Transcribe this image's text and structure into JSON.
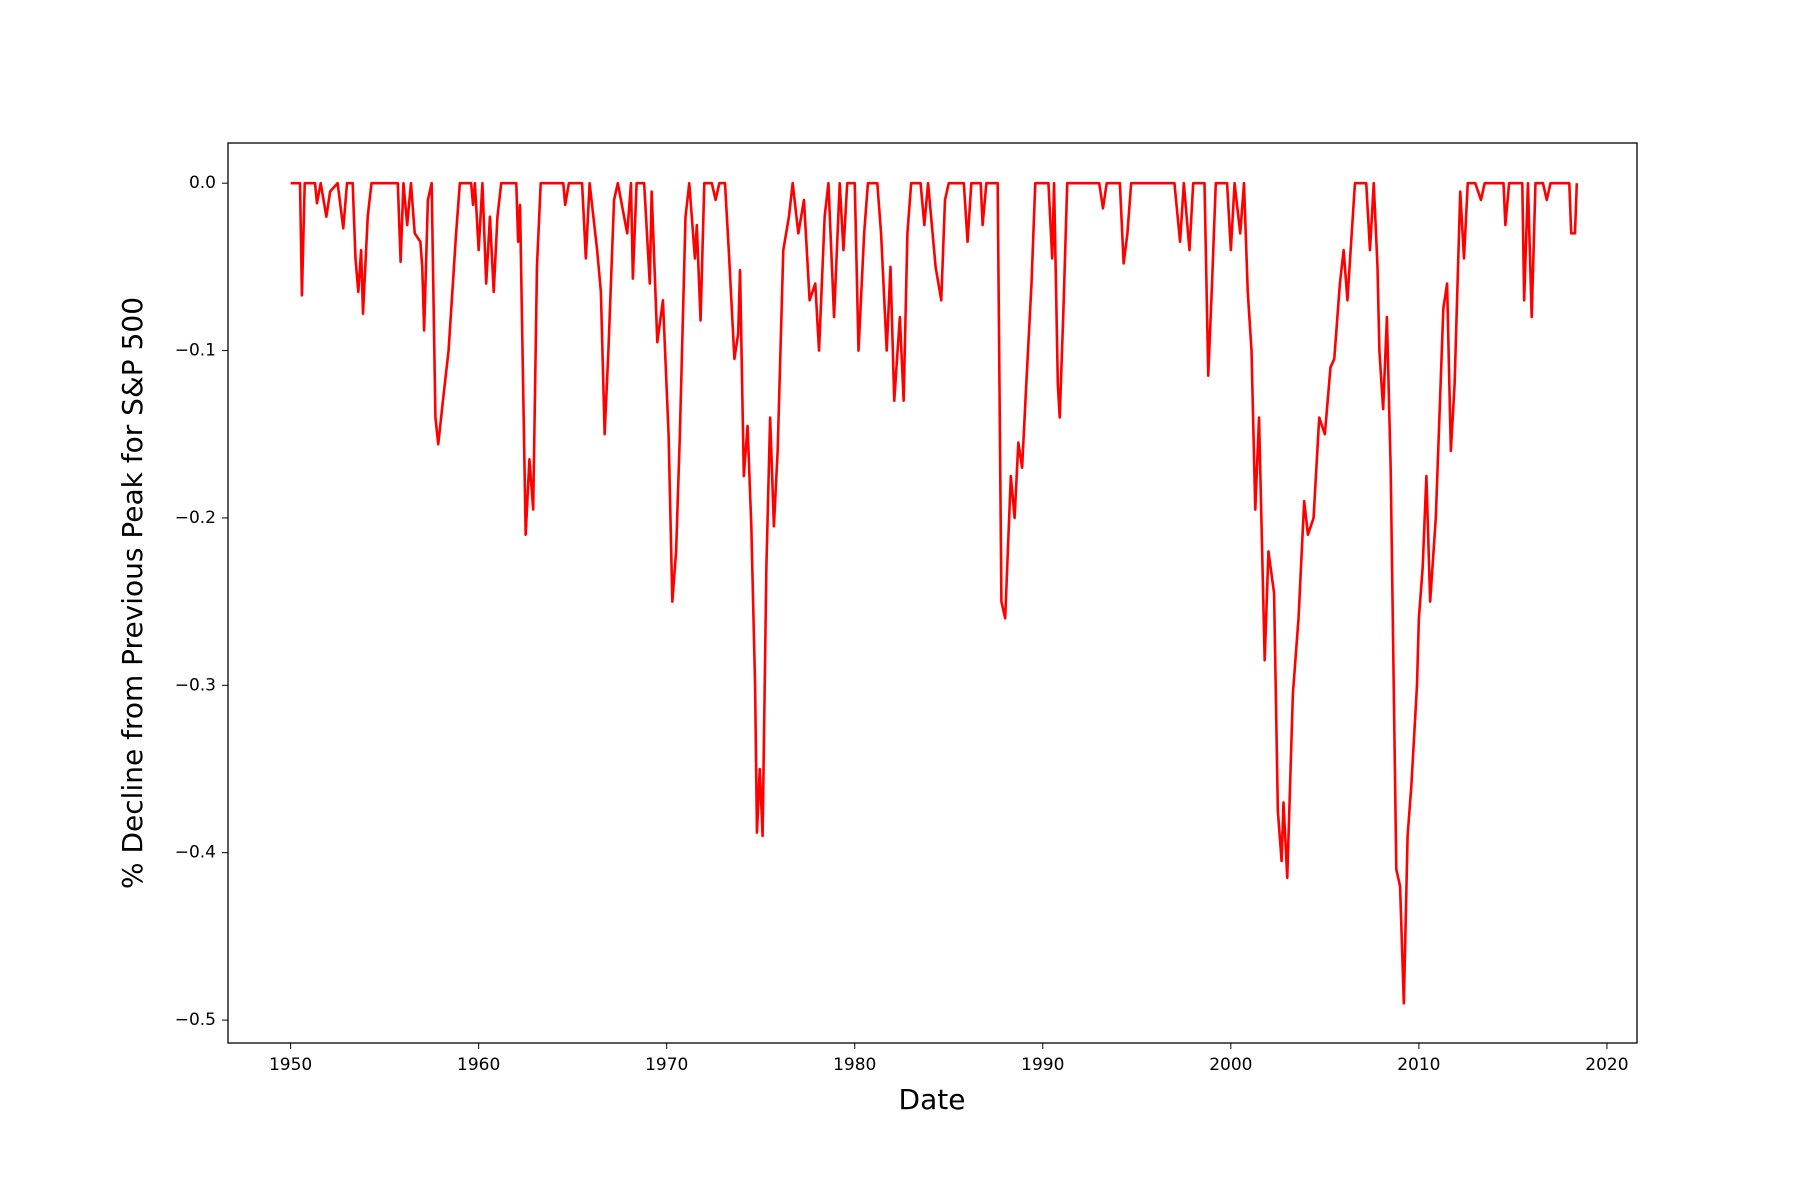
{
  "chart_data": {
    "type": "line",
    "xlabel": "Date",
    "ylabel": "% Decline from Previous Peak for S&P 500",
    "x": [
      1950.0,
      1950.5,
      1950.6,
      1950.75,
      1951.3,
      1951.4,
      1951.6,
      1951.9,
      1952.1,
      1952.5,
      1952.8,
      1953.0,
      1953.3,
      1953.45,
      1953.6,
      1953.75,
      1953.85,
      1954.1,
      1954.3,
      1955.7,
      1955.85,
      1956.0,
      1956.2,
      1956.4,
      1956.6,
      1956.9,
      1957.0,
      1957.1,
      1957.3,
      1957.5,
      1957.7,
      1957.85,
      1958.1,
      1958.4,
      1958.8,
      1959.0,
      1959.6,
      1959.7,
      1959.8,
      1960.0,
      1960.2,
      1960.4,
      1960.6,
      1960.8,
      1961.0,
      1961.2,
      1962.0,
      1962.1,
      1962.2,
      1962.5,
      1962.7,
      1962.9,
      1963.1,
      1963.3,
      1964.5,
      1964.6,
      1964.8,
      1965.5,
      1965.7,
      1965.9,
      1966.3,
      1966.5,
      1966.7,
      1966.9,
      1967.2,
      1967.4,
      1967.9,
      1968.1,
      1968.2,
      1968.4,
      1968.8,
      1969.1,
      1969.2,
      1969.5,
      1969.8,
      1970.1,
      1970.3,
      1970.5,
      1970.7,
      1971.0,
      1971.2,
      1971.5,
      1971.6,
      1971.8,
      1972.0,
      1972.4,
      1972.6,
      1972.8,
      1973.1,
      1973.3,
      1973.6,
      1973.8,
      1973.9,
      1974.1,
      1974.3,
      1974.5,
      1974.7,
      1974.8,
      1974.95,
      1975.1,
      1975.3,
      1975.5,
      1975.7,
      1975.9,
      1976.2,
      1976.5,
      1976.7,
      1977.0,
      1977.3,
      1977.6,
      1977.9,
      1978.1,
      1978.4,
      1978.6,
      1978.9,
      1979.2,
      1979.4,
      1979.6,
      1980.0,
      1980.2,
      1980.5,
      1980.7,
      1981.2,
      1981.4,
      1981.7,
      1981.9,
      1982.1,
      1982.4,
      1982.6,
      1982.8,
      1983.0,
      1983.5,
      1983.7,
      1983.9,
      1984.3,
      1984.6,
      1984.8,
      1985.0,
      1985.8,
      1986.0,
      1986.2,
      1986.7,
      1986.8,
      1987.0,
      1987.6,
      1987.8,
      1988.0,
      1988.3,
      1988.5,
      1988.7,
      1988.9,
      1989.1,
      1989.4,
      1989.6,
      1990.3,
      1990.5,
      1990.6,
      1990.8,
      1990.9,
      1991.1,
      1991.3,
      1993.0,
      1993.2,
      1993.4,
      1994.1,
      1994.3,
      1994.5,
      1994.7,
      1997.0,
      1997.3,
      1997.5,
      1997.8,
      1998.0,
      1998.6,
      1998.8,
      1999.0,
      1999.2,
      1999.8,
      2000.0,
      2000.2,
      2000.5,
      2000.7,
      2000.9,
      2001.1,
      2001.3,
      2001.5,
      2001.8,
      2002.0,
      2002.3,
      2002.5,
      2002.7,
      2002.8,
      2003.0,
      2003.3,
      2003.6,
      2003.9,
      2004.1,
      2004.4,
      2004.7,
      2005.0,
      2005.3,
      2005.5,
      2005.8,
      2006.0,
      2006.2,
      2006.6,
      2007.2,
      2007.4,
      2007.6,
      2007.8,
      2007.9,
      2008.1,
      2008.3,
      2008.5,
      2008.8,
      2009.0,
      2009.2,
      2009.4,
      2009.6,
      2009.9,
      2010.0,
      2010.2,
      2010.4,
      2010.6,
      2010.9,
      2011.3,
      2011.5,
      2011.7,
      2011.9,
      2012.2,
      2012.4,
      2012.6,
      2013.0,
      2013.3,
      2013.5,
      2014.5,
      2014.6,
      2014.8,
      2015.5,
      2015.6,
      2015.8,
      2016.0,
      2016.2,
      2016.6,
      2016.8,
      2017.0,
      2018.0,
      2018.1,
      2018.3,
      2018.4
    ],
    "series": [
      {
        "color": "#ff0000",
        "values": [
          0,
          0,
          -0.067,
          0,
          0,
          -0.012,
          0,
          -0.02,
          -0.005,
          0,
          -0.027,
          0,
          0,
          -0.045,
          -0.065,
          -0.04,
          -0.078,
          -0.02,
          0,
          0,
          -0.047,
          0,
          -0.025,
          0,
          -0.03,
          -0.035,
          -0.05,
          -0.088,
          -0.01,
          0,
          -0.14,
          -0.156,
          -0.13,
          -0.1,
          -0.03,
          0,
          0,
          -0.013,
          0,
          -0.04,
          0,
          -0.06,
          -0.02,
          -0.065,
          -0.02,
          0,
          0,
          -0.035,
          -0.013,
          -0.21,
          -0.165,
          -0.195,
          -0.05,
          0,
          0,
          -0.013,
          0,
          0,
          -0.045,
          0,
          -0.04,
          -0.065,
          -0.15,
          -0.1,
          -0.01,
          0,
          -0.03,
          0,
          -0.057,
          0,
          0,
          -0.06,
          -0.005,
          -0.095,
          -0.07,
          -0.15,
          -0.25,
          -0.22,
          -0.15,
          -0.02,
          0,
          -0.045,
          -0.025,
          -0.082,
          0,
          0,
          -0.01,
          0,
          0,
          -0.04,
          -0.105,
          -0.09,
          -0.052,
          -0.175,
          -0.145,
          -0.205,
          -0.3,
          -0.388,
          -0.35,
          -0.39,
          -0.23,
          -0.14,
          -0.205,
          -0.16,
          -0.04,
          -0.02,
          0,
          -0.03,
          -0.01,
          -0.07,
          -0.06,
          -0.1,
          -0.02,
          0,
          -0.08,
          0,
          -0.04,
          0,
          0,
          -0.1,
          -0.03,
          0,
          0,
          -0.03,
          -0.1,
          -0.05,
          -0.13,
          -0.08,
          -0.13,
          -0.03,
          0,
          0,
          -0.025,
          0,
          -0.05,
          -0.07,
          -0.01,
          0,
          0,
          -0.035,
          0,
          0,
          -0.025,
          0,
          0,
          -0.25,
          -0.26,
          -0.175,
          -0.2,
          -0.155,
          -0.17,
          -0.125,
          -0.06,
          0,
          0,
          -0.045,
          0,
          -0.12,
          -0.14,
          -0.075,
          0,
          0,
          -0.015,
          0,
          0,
          -0.048,
          -0.03,
          0,
          0,
          -0.035,
          0,
          -0.04,
          0,
          0,
          -0.115,
          -0.06,
          0,
          0,
          -0.04,
          0,
          -0.03,
          0,
          -0.065,
          -0.1,
          -0.195,
          -0.14,
          -0.285,
          -0.22,
          -0.245,
          -0.375,
          -0.405,
          -0.37,
          -0.415,
          -0.305,
          -0.26,
          -0.19,
          -0.21,
          -0.2,
          -0.14,
          -0.15,
          -0.11,
          -0.105,
          -0.06,
          -0.04,
          -0.07,
          0,
          0,
          -0.04,
          0,
          -0.05,
          -0.1,
          -0.135,
          -0.08,
          -0.17,
          -0.41,
          -0.42,
          -0.49,
          -0.39,
          -0.36,
          -0.3,
          -0.26,
          -0.23,
          -0.175,
          -0.25,
          -0.2,
          -0.075,
          -0.06,
          -0.16,
          -0.12,
          -0.005,
          -0.045,
          0,
          0,
          -0.01,
          0,
          0,
          -0.025,
          0,
          0,
          -0.07,
          0,
          -0.08,
          0,
          0,
          -0.01,
          0,
          0,
          -0.03,
          -0.03,
          0
        ]
      }
    ],
    "xlim": [
      1946.67,
      2021.6
    ],
    "xticks": [
      1950,
      1960,
      1970,
      1980,
      1990,
      2000,
      2010,
      2020
    ],
    "ylim": [
      -0.5137,
      0.024
    ],
    "yticks": [
      {
        "value": -0.5,
        "label": "−0.5"
      },
      {
        "value": -0.4,
        "label": "−0.4"
      },
      {
        "value": -0.3,
        "label": "−0.3"
      },
      {
        "value": -0.2,
        "label": "−0.2"
      },
      {
        "value": -0.1,
        "label": "−0.1"
      },
      {
        "value": 0,
        "label": "0.0"
      }
    ]
  }
}
